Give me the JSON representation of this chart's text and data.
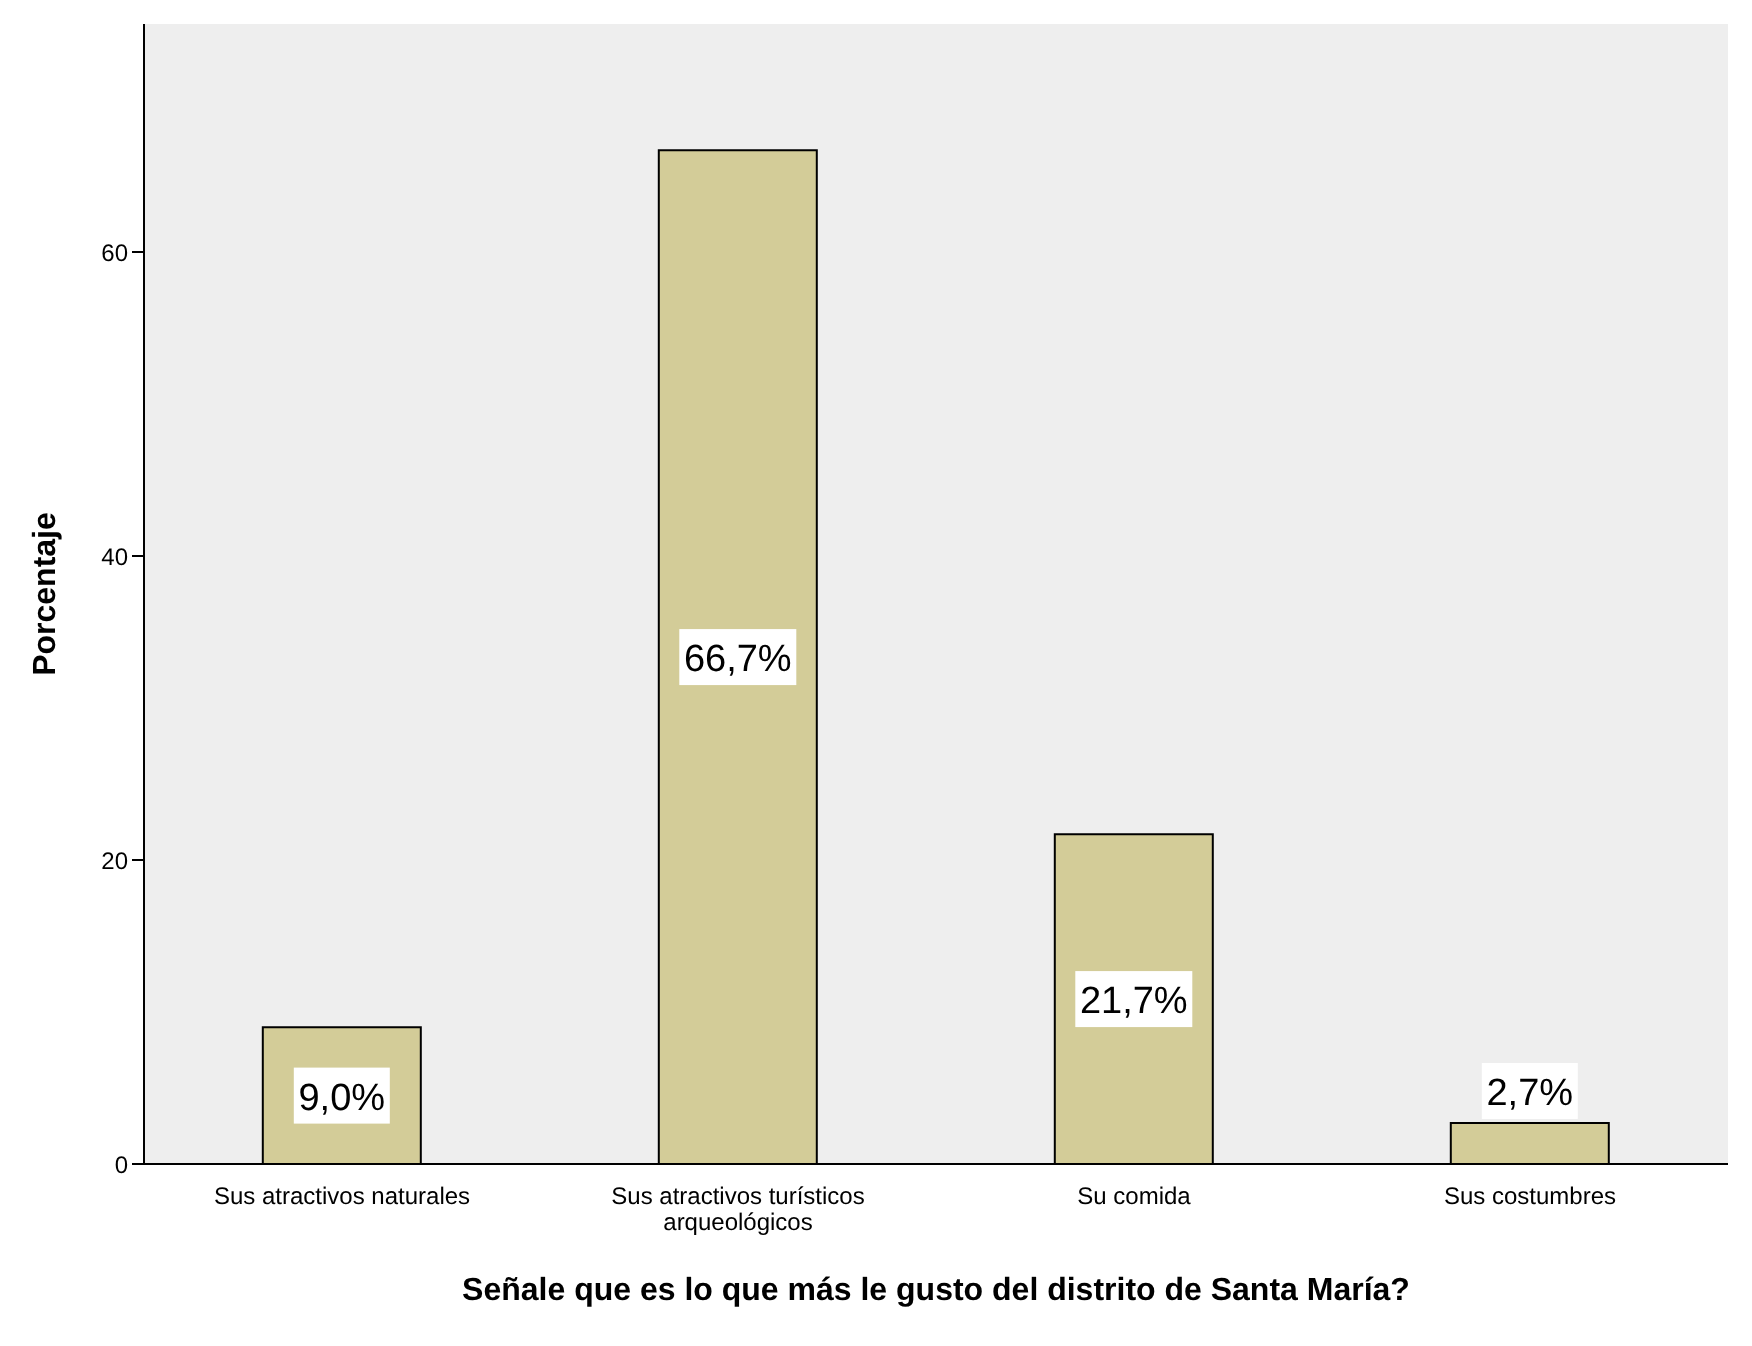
{
  "chart_data": {
    "type": "bar",
    "xlabel": "Señale que es lo que más le gusto del distrito de Santa María?",
    "ylabel": "Porcentaje",
    "categories": [
      "Sus atractivos naturales",
      "Sus atractivos turísticos arqueológicos",
      "Su comida",
      "Sus costumbres"
    ],
    "values": [
      9.0,
      66.7,
      21.7,
      2.7
    ],
    "value_labels": [
      "9,0%",
      "66,7%",
      "21,7%",
      "2,7%"
    ],
    "color": "#d3cc98",
    "ylim": [
      0,
      75
    ],
    "yticks": [
      0,
      20,
      40,
      60
    ],
    "grid": false
  }
}
